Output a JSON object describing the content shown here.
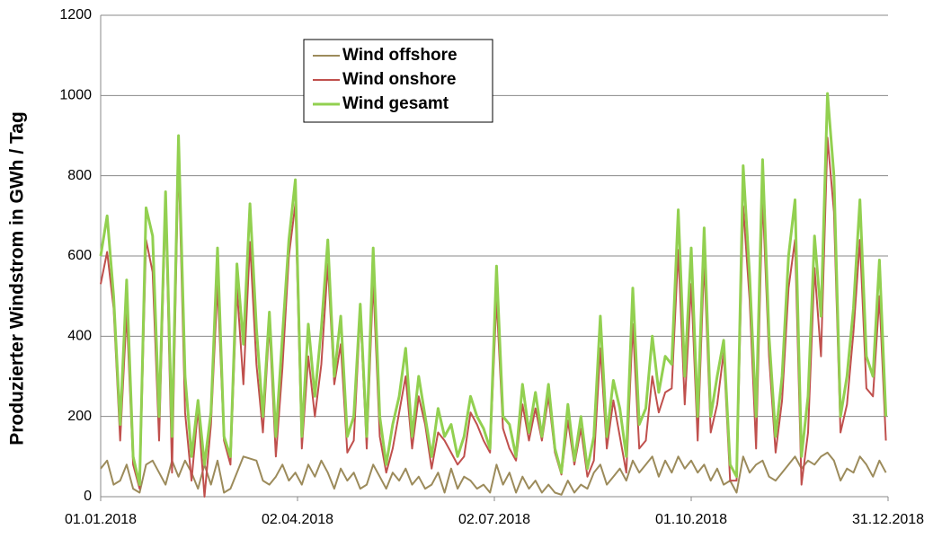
{
  "chart_data": {
    "type": "line",
    "y_label": "Produzierter Windstrom in GWh / Tag",
    "x": [
      0,
      3,
      6,
      9,
      12,
      15,
      18,
      21,
      24,
      27,
      30,
      33,
      36,
      39,
      42,
      45,
      48,
      51,
      54,
      57,
      60,
      63,
      66,
      69,
      72,
      75,
      78,
      81,
      84,
      87,
      90,
      93,
      96,
      99,
      102,
      105,
      108,
      111,
      114,
      117,
      120,
      123,
      126,
      129,
      132,
      135,
      138,
      141,
      144,
      147,
      150,
      153,
      156,
      159,
      162,
      165,
      168,
      171,
      174,
      177,
      180,
      183,
      186,
      189,
      192,
      195,
      198,
      201,
      204,
      207,
      210,
      213,
      216,
      219,
      222,
      225,
      228,
      231,
      234,
      237,
      240,
      243,
      246,
      249,
      252,
      255,
      258,
      261,
      264,
      267,
      270,
      273,
      276,
      279,
      282,
      285,
      288,
      291,
      294,
      297,
      300,
      303,
      306,
      309,
      312,
      315,
      318,
      321,
      324,
      327,
      330,
      333,
      336,
      339,
      342,
      345,
      348,
      351,
      354,
      357,
      360,
      363
    ],
    "series": [
      {
        "name": "Wind offshore",
        "color": "#9c8b5b",
        "values": [
          70,
          90,
          30,
          40,
          80,
          20,
          10,
          80,
          90,
          60,
          30,
          90,
          50,
          90,
          60,
          20,
          80,
          30,
          90,
          10,
          20,
          60,
          100,
          95,
          90,
          40,
          30,
          50,
          80,
          40,
          60,
          30,
          80,
          50,
          90,
          60,
          20,
          70,
          40,
          60,
          20,
          30,
          80,
          50,
          20,
          60,
          40,
          70,
          30,
          50,
          20,
          30,
          60,
          10,
          70,
          20,
          50,
          40,
          20,
          30,
          10,
          80,
          30,
          60,
          10,
          50,
          20,
          40,
          10,
          30,
          10,
          5,
          40,
          10,
          30,
          20,
          60,
          80,
          30,
          50,
          70,
          40,
          90,
          60,
          80,
          100,
          50,
          90,
          60,
          100,
          70,
          90,
          60,
          80,
          40,
          70,
          30,
          40,
          10,
          100,
          60,
          80,
          90,
          50,
          40,
          60,
          80,
          100,
          70,
          90,
          80,
          100,
          110,
          90,
          40,
          70,
          60,
          100,
          80,
          50,
          90,
          60
        ]
      },
      {
        "name": "Wind onshore",
        "color": "#c0504d",
        "values": [
          530,
          610,
          470,
          140,
          460,
          80,
          20,
          640,
          560,
          140,
          730,
          60,
          850,
          210,
          40,
          220,
          0,
          180,
          530,
          140,
          80,
          520,
          280,
          635,
          330,
          160,
          430,
          100,
          320,
          600,
          730,
          120,
          350,
          200,
          330,
          580,
          280,
          380,
          110,
          140,
          460,
          120,
          540,
          150,
          60,
          120,
          210,
          300,
          120,
          250,
          180,
          70,
          160,
          140,
          110,
          80,
          100,
          210,
          180,
          140,
          110,
          495,
          170,
          120,
          90,
          230,
          140,
          220,
          140,
          250,
          110,
          55,
          190,
          80,
          170,
          50,
          90,
          370,
          120,
          240,
          150,
          60,
          430,
          120,
          140,
          300,
          210,
          260,
          270,
          615,
          230,
          530,
          140,
          590,
          160,
          230,
          360,
          40,
          40,
          725,
          490,
          120,
          750,
          350,
          110,
          240,
          520,
          640,
          30,
          160,
          570,
          350,
          895,
          710,
          160,
          230,
          410,
          640,
          270,
          250,
          500,
          140
        ]
      },
      {
        "name": "Wind gesamt",
        "color": "#92d050",
        "values": [
          600,
          700,
          500,
          180,
          540,
          100,
          30,
          720,
          650,
          200,
          760,
          150,
          900,
          300,
          100,
          240,
          80,
          210,
          620,
          150,
          100,
          580,
          380,
          730,
          420,
          200,
          460,
          150,
          400,
          640,
          790,
          150,
          430,
          250,
          420,
          640,
          300,
          450,
          150,
          200,
          480,
          150,
          620,
          200,
          80,
          180,
          250,
          370,
          150,
          300,
          200,
          100,
          220,
          150,
          180,
          100,
          150,
          250,
          200,
          170,
          120,
          575,
          200,
          180,
          100,
          280,
          160,
          260,
          150,
          280,
          120,
          60,
          230,
          90,
          200,
          70,
          150,
          450,
          150,
          290,
          220,
          100,
          520,
          180,
          220,
          400,
          260,
          350,
          330,
          715,
          300,
          620,
          200,
          670,
          200,
          300,
          390,
          80,
          50,
          825,
          550,
          200,
          840,
          400,
          150,
          300,
          600,
          740,
          100,
          250,
          650,
          450,
          1005,
          800,
          200,
          300,
          470,
          740,
          350,
          300,
          590,
          200
        ]
      }
    ],
    "xlim": [
      0,
      364
    ],
    "xticks": [
      {
        "value": 0,
        "label": "01.01.2018"
      },
      {
        "value": 91,
        "label": "02.04.2018"
      },
      {
        "value": 182,
        "label": "02.07.2018"
      },
      {
        "value": 273,
        "label": "01.10.2018"
      },
      {
        "value": 364,
        "label": "31.12.2018"
      }
    ],
    "ylim": [
      0,
      1200
    ],
    "yticks": [
      0,
      200,
      400,
      600,
      800,
      1000,
      1200
    ],
    "grid": true
  }
}
